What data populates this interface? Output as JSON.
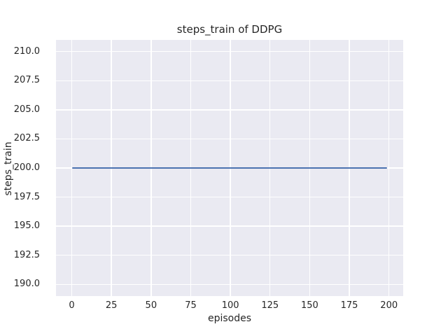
{
  "chart_data": {
    "type": "line",
    "title": "steps_train of DDPG",
    "xlabel": "episodes",
    "ylabel": "steps_train",
    "xlim": [
      -9.95,
      208.95
    ],
    "ylim": [
      189.0,
      211.0
    ],
    "x_ticks": [
      0,
      25,
      50,
      75,
      100,
      125,
      150,
      175,
      200
    ],
    "x_tick_labels": [
      "0",
      "25",
      "50",
      "75",
      "100",
      "125",
      "150",
      "175",
      "200"
    ],
    "y_ticks": [
      210.0,
      207.5,
      205.0,
      202.5,
      200.0,
      197.5,
      195.0,
      192.5,
      190.0
    ],
    "y_tick_labels": [
      "210.0",
      "207.5",
      "205.0",
      "202.5",
      "200.0",
      "197.5",
      "195.0",
      "192.5",
      "190.0"
    ],
    "grid": true,
    "legend": false,
    "series": [
      {
        "name": "steps_train",
        "color": "#4C72B0",
        "x": [
          0,
          199
        ],
        "y": [
          200,
          200
        ],
        "note": "constant value 200 for every episode 0-199"
      }
    ],
    "style": {
      "plot_background": "#eaeaf2",
      "grid_color": "#ffffff",
      "text_color": "#262626",
      "figure_background": "#ffffff"
    }
  }
}
